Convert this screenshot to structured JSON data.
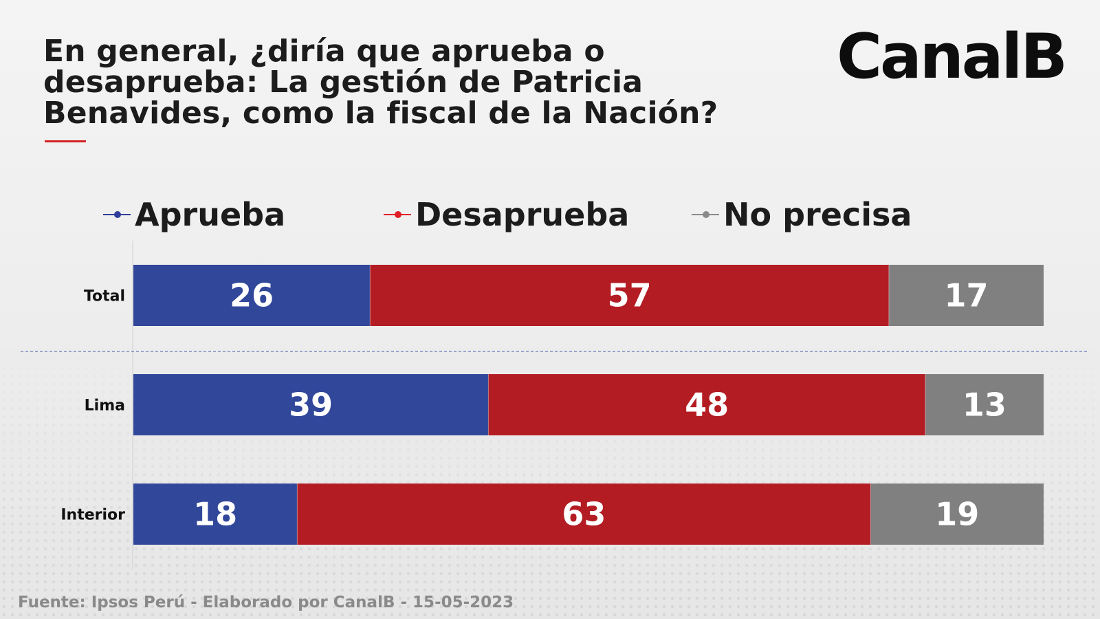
{
  "title": "En general, ¿diría que aprueba o desaprueba: La gestión de Patricia Benavides, como la fiscal de la Nación?",
  "logo": "CanalB",
  "source": "Fuente: Ipsos Perú - Elaborado por CanalB - 15-05-2023",
  "colors": {
    "aprueba": "#31479a",
    "desaprueba": "#b41c23",
    "no_precisa": "#808080",
    "legend_aprueba": "#2f3f9a",
    "legend_desaprueba": "#e01f26",
    "legend_no_precisa": "#8a8a8a",
    "title_rule": "#d32222"
  },
  "legend": [
    {
      "label": "Aprueba",
      "color_key": "legend_aprueba"
    },
    {
      "label": "Desaprueba",
      "color_key": "legend_desaprueba"
    },
    {
      "label": "No precisa",
      "color_key": "legend_no_precisa"
    }
  ],
  "chart_data": {
    "type": "bar",
    "orientation": "horizontal",
    "stacked": true,
    "categories": [
      "Total",
      "Lima",
      "Interior"
    ],
    "series": [
      {
        "name": "Aprueba",
        "values": [
          26,
          39,
          18
        ]
      },
      {
        "name": "Desaprueba",
        "values": [
          57,
          48,
          63
        ]
      },
      {
        "name": "No precisa",
        "values": [
          17,
          13,
          19
        ]
      }
    ],
    "xlim": [
      0,
      100
    ],
    "grid": false,
    "legend_position": "top",
    "separator_after_category": "Total"
  }
}
